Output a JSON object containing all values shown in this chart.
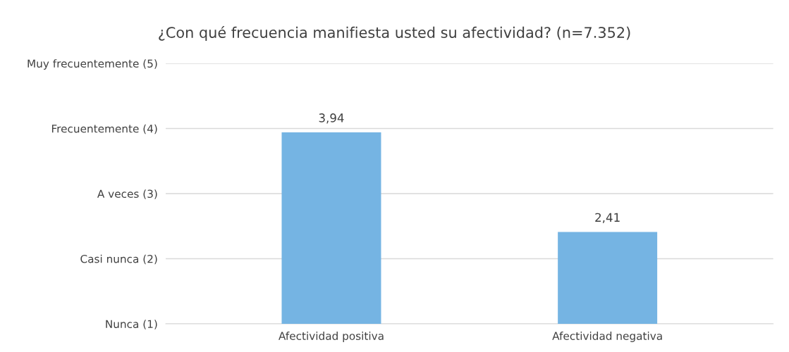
{
  "chart_data": {
    "type": "bar",
    "title": "¿Con qué frecuencia manifiesta usted su afectividad? (n=7.352)",
    "categories": [
      "Afectividad positiva",
      "Afectividad negativa"
    ],
    "values": [
      3.94,
      2.41
    ],
    "value_labels": [
      "3,94",
      "2,41"
    ],
    "color": "#75b4e3",
    "ylim": [
      1,
      5
    ],
    "yticks": [
      {
        "value": 1,
        "label": "Nunca (1)"
      },
      {
        "value": 2,
        "label": "Casi nunca (2)"
      },
      {
        "value": 3,
        "label": "A veces (3)"
      },
      {
        "value": 4,
        "label": "Frecuentemente (4)"
      },
      {
        "value": 5,
        "label": "Muy frecuentemente (5)"
      }
    ],
    "grid": "y"
  }
}
